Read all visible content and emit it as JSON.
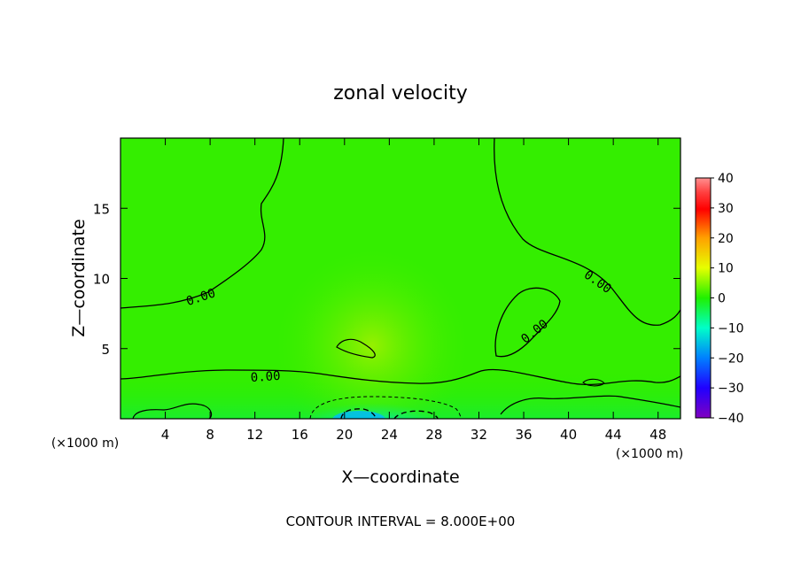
{
  "chart_data": {
    "type": "heatmap",
    "title": "zonal velocity",
    "xlabel": "X—coordinate",
    "ylabel": "Z—coordinate",
    "x_unit_left": "(×1000 m)",
    "x_unit_right": "(×1000 m)",
    "xlim": [
      0,
      50
    ],
    "ylim": [
      0,
      20
    ],
    "x_ticks": [
      4,
      8,
      12,
      16,
      20,
      24,
      28,
      32,
      36,
      40,
      44,
      48
    ],
    "x_tick_labels": [
      "4",
      "8",
      "12",
      "16",
      "20",
      "24",
      "28",
      "32",
      "36",
      "40",
      "44",
      "48"
    ],
    "y_ticks": [
      5,
      10,
      15
    ],
    "y_tick_labels": [
      "5",
      "10",
      "15"
    ],
    "colorbar": {
      "min": -40,
      "max": 40,
      "ticks": [
        40,
        30,
        20,
        10,
        0,
        -10,
        -20,
        -30,
        -40
      ],
      "tick_labels": [
        "40",
        "30",
        "20",
        "10",
        "0",
        "−10",
        "−20",
        "−30",
        "−40"
      ]
    },
    "contour_labels": [
      "0.00",
      "0.00",
      "0.00",
      "0.00"
    ],
    "contour_interval_text": "CONTOUR INTERVAL = 8.000E+00",
    "grid": false,
    "legend": "colorbar-right",
    "features": [
      {
        "kind": "field",
        "description": "mostly near-zero positive flow",
        "value_range": [
          0,
          4
        ]
      },
      {
        "kind": "maximum",
        "x": 22,
        "z": 5,
        "value": 6
      },
      {
        "kind": "minimum",
        "x": 22,
        "z": 0.5,
        "value": -12
      }
    ]
  }
}
